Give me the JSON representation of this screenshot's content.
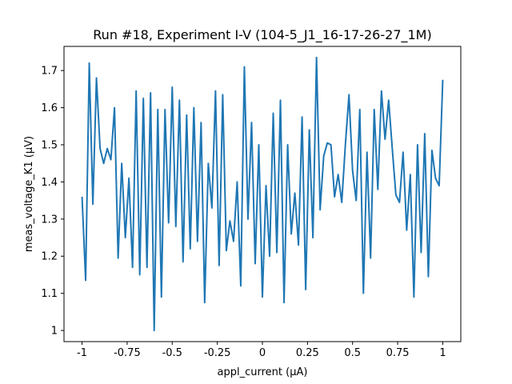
{
  "chart_data": {
    "type": "line",
    "title": "Run #18, Experiment I-V (104-5_J1_16-17-26-27_1M)",
    "xlabel": "appl_current (µA)",
    "ylabel": "meas_voltage_K1 (µV)",
    "xlim": [
      -1.1,
      1.1
    ],
    "ylim": [
      0.97,
      1.765
    ],
    "xticks": [
      -1,
      -0.75,
      -0.5,
      -0.25,
      0,
      0.25,
      0.5,
      0.75,
      1
    ],
    "xtick_labels": [
      "-1",
      "-0.75",
      "-0.5",
      "-0.25",
      "0",
      "0.25",
      "0.5",
      "0.75",
      "1"
    ],
    "yticks": [
      1,
      1.1,
      1.2,
      1.3,
      1.4,
      1.5,
      1.6,
      1.7
    ],
    "ytick_labels": [
      "1",
      "1.1",
      "1.2",
      "1.3",
      "1.4",
      "1.5",
      "1.6",
      "1.7"
    ],
    "grid": false,
    "series_color": "#1f77b4",
    "x": [
      -1.0,
      -0.98,
      -0.96,
      -0.94,
      -0.92,
      -0.9,
      -0.88,
      -0.86,
      -0.84,
      -0.82,
      -0.8,
      -0.78,
      -0.76,
      -0.74,
      -0.72,
      -0.7,
      -0.68,
      -0.66,
      -0.64,
      -0.62,
      -0.6,
      -0.58,
      -0.56,
      -0.54,
      -0.52,
      -0.5,
      -0.48,
      -0.46,
      -0.44,
      -0.42,
      -0.4,
      -0.38,
      -0.36,
      -0.34,
      -0.32,
      -0.3,
      -0.28,
      -0.26,
      -0.24,
      -0.22,
      -0.2,
      -0.18,
      -0.16,
      -0.14,
      -0.12,
      -0.1,
      -0.08,
      -0.06,
      -0.04,
      -0.02,
      0.0,
      0.02,
      0.04,
      0.06,
      0.08,
      0.1,
      0.12,
      0.14,
      0.16,
      0.18,
      0.2,
      0.22,
      0.24,
      0.26,
      0.28,
      0.3,
      0.32,
      0.34,
      0.36,
      0.38,
      0.4,
      0.42,
      0.44,
      0.46,
      0.48,
      0.5,
      0.52,
      0.54,
      0.56,
      0.58,
      0.6,
      0.62,
      0.64,
      0.66,
      0.68,
      0.7,
      0.72,
      0.74,
      0.76,
      0.78,
      0.8,
      0.82,
      0.84,
      0.86,
      0.88,
      0.9,
      0.92,
      0.94,
      0.96,
      0.98,
      1.0
    ],
    "y": [
      1.36,
      1.135,
      1.72,
      1.34,
      1.68,
      1.49,
      1.45,
      1.49,
      1.46,
      1.6,
      1.195,
      1.45,
      1.25,
      1.41,
      1.17,
      1.645,
      1.15,
      1.625,
      1.17,
      1.64,
      1.0,
      1.595,
      1.09,
      1.595,
      1.29,
      1.655,
      1.28,
      1.62,
      1.185,
      1.58,
      1.22,
      1.6,
      1.24,
      1.56,
      1.075,
      1.45,
      1.33,
      1.645,
      1.175,
      1.635,
      1.215,
      1.295,
      1.24,
      1.4,
      1.12,
      1.71,
      1.3,
      1.56,
      1.18,
      1.5,
      1.09,
      1.39,
      1.2,
      1.585,
      1.21,
      1.62,
      1.075,
      1.5,
      1.26,
      1.37,
      1.23,
      1.575,
      1.11,
      1.54,
      1.25,
      1.735,
      1.325,
      1.47,
      1.505,
      1.5,
      1.36,
      1.42,
      1.345,
      1.5,
      1.635,
      1.43,
      1.35,
      1.595,
      1.1,
      1.48,
      1.195,
      1.595,
      1.38,
      1.645,
      1.515,
      1.62,
      1.49,
      1.365,
      1.345,
      1.48,
      1.27,
      1.42,
      1.09,
      1.5,
      1.21,
      1.53,
      1.145,
      1.485,
      1.41,
      1.39,
      1.675
    ]
  }
}
